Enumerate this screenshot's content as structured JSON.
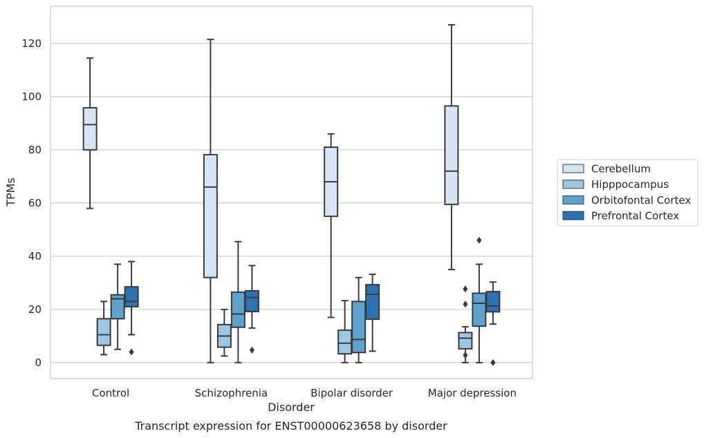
{
  "caption": "Transcript expression for ENST00000623658 by disorder",
  "chart_data": {
    "type": "box",
    "xlabel": "Disorder",
    "ylabel": "TPMs",
    "ylim": [
      -6,
      134
    ],
    "yticks": [
      0,
      20,
      40,
      60,
      80,
      100,
      120
    ],
    "grid": "horizontal",
    "legend_position": "right",
    "categories": [
      "Control",
      "Schizophrenia",
      "Bipolar disorder",
      "Major depression"
    ],
    "series": [
      {
        "name": "Cerebellum",
        "color": "#d6e5f4",
        "boxes": [
          {
            "whisker_low": 58,
            "q1": 80,
            "median": 89.5,
            "q3": 95.8,
            "whisker_high": 114.5,
            "outliers": []
          },
          {
            "whisker_low": 0,
            "q1": 32,
            "median": 66,
            "q3": 78.2,
            "whisker_high": 121.5,
            "outliers": []
          },
          {
            "whisker_low": 17,
            "q1": 55,
            "median": 68,
            "q3": 81,
            "whisker_high": 86,
            "outliers": []
          },
          {
            "whisker_low": 35,
            "q1": 59.5,
            "median": 72,
            "q3": 96.5,
            "whisker_high": 127,
            "outliers": []
          }
        ]
      },
      {
        "name": "Hipppocampus",
        "color": "#9dc7e0",
        "boxes": [
          {
            "whisker_low": 3,
            "q1": 6.5,
            "median": 10.5,
            "q3": 16.5,
            "whisker_high": 23,
            "outliers": []
          },
          {
            "whisker_low": 2.5,
            "q1": 5.8,
            "median": 10,
            "q3": 14.3,
            "whisker_high": 20,
            "outliers": []
          },
          {
            "whisker_low": 0,
            "q1": 3.3,
            "median": 7.3,
            "q3": 12.2,
            "whisker_high": 23.3,
            "outliers": []
          },
          {
            "whisker_low": 0,
            "q1": 5.2,
            "median": 9.2,
            "q3": 11.3,
            "whisker_high": 13.5,
            "outliers": [
              2.8,
              22,
              27.7
            ]
          }
        ]
      },
      {
        "name": "Orbitofontal Cortex",
        "color": "#5da1cd",
        "boxes": [
          {
            "whisker_low": 5,
            "q1": 16.5,
            "median": 24,
            "q3": 25.5,
            "whisker_high": 37,
            "outliers": []
          },
          {
            "whisker_low": 0,
            "q1": 13.3,
            "median": 18.3,
            "q3": 26.5,
            "whisker_high": 45.5,
            "outliers": []
          },
          {
            "whisker_low": 0,
            "q1": 3.8,
            "median": 8.7,
            "q3": 23,
            "whisker_high": 32,
            "outliers": []
          },
          {
            "whisker_low": 0,
            "q1": 13.7,
            "median": 22.3,
            "q3": 26.1,
            "whisker_high": 37,
            "outliers": [
              46
            ]
          }
        ]
      },
      {
        "name": "Prefrontal Cortex",
        "color": "#2a72b2",
        "boxes": [
          {
            "whisker_low": 10.5,
            "q1": 21,
            "median": 23,
            "q3": 28.5,
            "whisker_high": 38,
            "outliers": [
              4
            ]
          },
          {
            "whisker_low": 13,
            "q1": 19.2,
            "median": 24.5,
            "q3": 27,
            "whisker_high": 36.5,
            "outliers": [
              4.7
            ]
          },
          {
            "whisker_low": 4.3,
            "q1": 16.3,
            "median": 25.7,
            "q3": 29.3,
            "whisker_high": 33.2,
            "outliers": []
          },
          {
            "whisker_low": 14.5,
            "q1": 19.1,
            "median": 21.3,
            "q3": 26.7,
            "whisker_high": 30.3,
            "outliers": [
              0
            ]
          }
        ]
      }
    ]
  }
}
